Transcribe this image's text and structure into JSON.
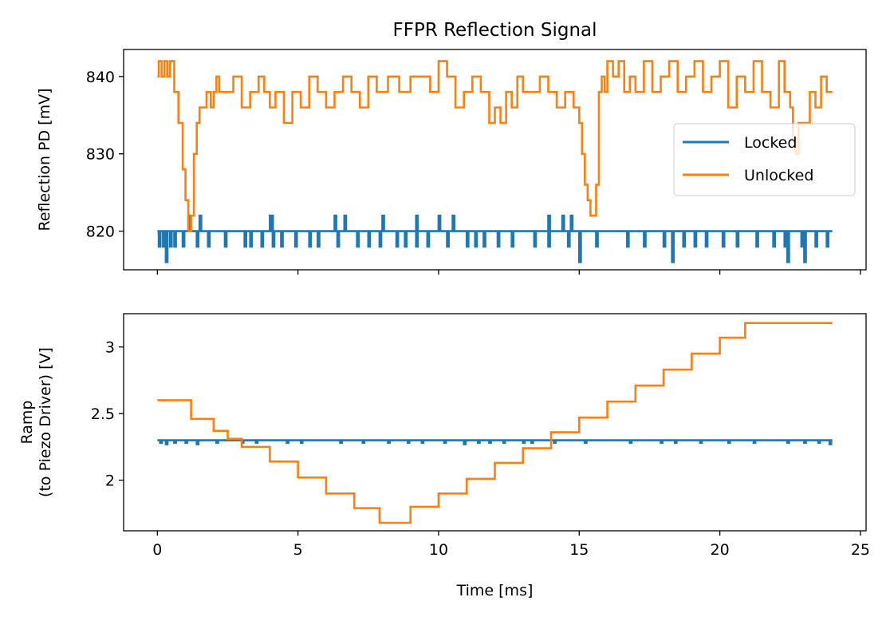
{
  "chart_data": [
    {
      "type": "line",
      "title": "FFPR Reflection Signal",
      "xlabel": "",
      "ylabel": "Reflection PD [mV]",
      "xlim": [
        -1.2,
        25.2
      ],
      "ylim": [
        815,
        843.5
      ],
      "xticks": [
        0,
        5,
        10,
        15,
        20,
        25
      ],
      "xtick_labels_visible": false,
      "yticks": [
        820,
        830,
        840
      ],
      "legend": {
        "position": "center-right",
        "entries": [
          "Locked",
          "Unlocked"
        ]
      },
      "grid": false,
      "series": [
        {
          "name": "Locked",
          "color": "#1f77b4",
          "base": 820,
          "x_range": [
            0,
            24
          ],
          "dips": [
            [
              0.05,
              818
            ],
            [
              0.2,
              818
            ],
            [
              0.3,
              816
            ],
            [
              0.45,
              818
            ],
            [
              0.6,
              818
            ],
            [
              0.9,
              818
            ],
            [
              1.4,
              818
            ],
            [
              1.8,
              818
            ],
            [
              2.4,
              818
            ],
            [
              3.1,
              818
            ],
            [
              3.3,
              818
            ],
            [
              3.7,
              818
            ],
            [
              4.1,
              818
            ],
            [
              4.4,
              818
            ],
            [
              4.9,
              818
            ],
            [
              5.4,
              818
            ],
            [
              5.7,
              818
            ],
            [
              6.4,
              818
            ],
            [
              7.1,
              818
            ],
            [
              7.5,
              818
            ],
            [
              7.9,
              818
            ],
            [
              8.5,
              818
            ],
            [
              8.8,
              818
            ],
            [
              9.2,
              818
            ],
            [
              9.6,
              818
            ],
            [
              10.3,
              818
            ],
            [
              11.0,
              818
            ],
            [
              11.3,
              818
            ],
            [
              11.6,
              818
            ],
            [
              12.1,
              818
            ],
            [
              12.6,
              818
            ],
            [
              13.4,
              818
            ],
            [
              13.9,
              818
            ],
            [
              14.6,
              818
            ],
            [
              15.0,
              818
            ],
            [
              15.0,
              816
            ],
            [
              15.6,
              818
            ],
            [
              16.7,
              818
            ],
            [
              17.3,
              818
            ],
            [
              18.0,
              818
            ],
            [
              18.3,
              818
            ],
            [
              18.3,
              816
            ],
            [
              18.7,
              818
            ],
            [
              19.1,
              818
            ],
            [
              19.5,
              818
            ],
            [
              20.1,
              818
            ],
            [
              20.6,
              818
            ],
            [
              21.3,
              818
            ],
            [
              21.9,
              818
            ],
            [
              22.3,
              818
            ],
            [
              22.4,
              816
            ],
            [
              22.9,
              818
            ],
            [
              23.0,
              816
            ],
            [
              23.4,
              818
            ],
            [
              23.8,
              818
            ]
          ],
          "peaks": [
            [
              1.1,
              822
            ],
            [
              1.5,
              822
            ],
            [
              4.0,
              822
            ],
            [
              4.05,
              822
            ],
            [
              6.3,
              822
            ],
            [
              6.65,
              822
            ],
            [
              8.0,
              822
            ],
            [
              9.2,
              822
            ],
            [
              10.0,
              822
            ],
            [
              10.5,
              822
            ],
            [
              13.9,
              822
            ],
            [
              14.4,
              822
            ],
            [
              14.7,
              822
            ]
          ]
        },
        {
          "name": "Unlocked",
          "color": "#ff7f0e",
          "x": [
            0,
            0.05,
            0.15,
            0.25,
            0.35,
            0.45,
            0.6,
            0.75,
            0.9,
            1.0,
            1.1,
            1.2,
            1.3,
            1.4,
            1.5,
            1.6,
            1.75,
            1.9,
            2.0,
            2.1,
            2.2,
            2.3,
            2.5,
            2.7,
            3.0,
            3.3,
            3.6,
            3.8,
            4.0,
            4.2,
            4.5,
            4.8,
            5.1,
            5.4,
            5.7,
            6.0,
            6.3,
            6.6,
            6.9,
            7.2,
            7.5,
            7.8,
            8.2,
            8.6,
            9.0,
            9.4,
            9.7,
            10.0,
            10.3,
            10.6,
            10.9,
            11.2,
            11.5,
            11.8,
            12.0,
            12.2,
            12.4,
            12.6,
            12.8,
            13.0,
            13.3,
            13.6,
            13.9,
            14.2,
            14.5,
            14.8,
            15.0,
            15.1,
            15.2,
            15.3,
            15.4,
            15.5,
            15.6,
            15.7,
            15.8,
            15.9,
            16.0,
            16.2,
            16.4,
            16.6,
            16.8,
            17.0,
            17.3,
            17.6,
            17.9,
            18.2,
            18.5,
            18.8,
            19.1,
            19.4,
            19.7,
            20.0,
            20.3,
            20.6,
            20.9,
            21.2,
            21.5,
            21.8,
            22.1,
            22.3,
            22.5,
            22.6,
            22.7,
            22.8,
            23.0,
            23.2,
            23.4,
            23.6,
            23.8,
            24.0
          ],
          "y": [
            840,
            842,
            840,
            842,
            840,
            842,
            838,
            834,
            828,
            824,
            820,
            822,
            830,
            834,
            836,
            836,
            838,
            836,
            838,
            840,
            838,
            838,
            838,
            840,
            836,
            838,
            840,
            838,
            836,
            838,
            834,
            838,
            836,
            840,
            838,
            836,
            838,
            840,
            838,
            836,
            840,
            838,
            840,
            838,
            840,
            840,
            838,
            842,
            840,
            836,
            838,
            840,
            838,
            834,
            836,
            834,
            838,
            836,
            840,
            838,
            838,
            840,
            838,
            836,
            838,
            836,
            834,
            830,
            826,
            824,
            822,
            822,
            826,
            838,
            840,
            838,
            842,
            840,
            842,
            838,
            840,
            838,
            842,
            838,
            840,
            842,
            838,
            840,
            842,
            838,
            840,
            842,
            836,
            840,
            838,
            842,
            838,
            836,
            842,
            838,
            836,
            832,
            830,
            834,
            834,
            838,
            836,
            840,
            838,
            838
          ]
        }
      ]
    },
    {
      "type": "line",
      "title": "",
      "xlabel": "Time [ms]",
      "ylabel": "Ramp\n(to Piezo Driver) [V]",
      "ylabel_lines": [
        "Ramp",
        "(to Piezo Driver) [V]"
      ],
      "xlim": [
        -1.2,
        25.2
      ],
      "ylim": [
        1.62,
        3.25
      ],
      "xticks": [
        0,
        5,
        10,
        15,
        20,
        25
      ],
      "yticks": [
        2.0,
        2.5,
        3.0
      ],
      "grid": false,
      "series": [
        {
          "name": "Locked",
          "color": "#1f77b4",
          "base": 2.3,
          "x_range": [
            0,
            24
          ],
          "dips": [
            [
              0.1,
              2.28
            ],
            [
              0.3,
              2.27
            ],
            [
              0.6,
              2.28
            ],
            [
              1.0,
              2.28
            ],
            [
              1.4,
              2.27
            ],
            [
              2.1,
              2.28
            ],
            [
              3.0,
              2.28
            ],
            [
              3.5,
              2.28
            ],
            [
              4.6,
              2.28
            ],
            [
              5.1,
              2.28
            ],
            [
              6.5,
              2.28
            ],
            [
              7.3,
              2.28
            ],
            [
              8.2,
              2.28
            ],
            [
              8.9,
              2.28
            ],
            [
              9.4,
              2.28
            ],
            [
              10.2,
              2.28
            ],
            [
              10.9,
              2.27
            ],
            [
              11.4,
              2.28
            ],
            [
              11.8,
              2.28
            ],
            [
              12.3,
              2.28
            ],
            [
              13.0,
              2.28
            ],
            [
              13.3,
              2.28
            ],
            [
              14.1,
              2.28
            ],
            [
              15.2,
              2.28
            ],
            [
              16.8,
              2.28
            ],
            [
              17.9,
              2.28
            ],
            [
              18.4,
              2.28
            ],
            [
              19.3,
              2.28
            ],
            [
              20.3,
              2.28
            ],
            [
              21.2,
              2.28
            ],
            [
              22.4,
              2.28
            ],
            [
              23.0,
              2.28
            ],
            [
              23.5,
              2.28
            ],
            [
              23.9,
              2.27
            ]
          ],
          "peaks": []
        },
        {
          "name": "Unlocked",
          "color": "#ff7f0e",
          "x": [
            0,
            1.2,
            2.0,
            2.5,
            3.0,
            4.0,
            5.0,
            6.0,
            7.0,
            7.9,
            8.1,
            9.0,
            10.0,
            11.0,
            12.0,
            13.0,
            14.0,
            15.0,
            16.0,
            17.0,
            18.0,
            19.0,
            20.0,
            20.9,
            21.0,
            24.0
          ],
          "y": [
            2.6,
            2.46,
            2.37,
            2.31,
            2.25,
            2.14,
            2.02,
            1.9,
            1.79,
            1.68,
            1.68,
            1.8,
            1.9,
            2.01,
            2.13,
            2.24,
            2.36,
            2.47,
            2.59,
            2.71,
            2.83,
            2.95,
            3.07,
            3.18,
            3.18,
            3.18
          ]
        }
      ]
    }
  ]
}
